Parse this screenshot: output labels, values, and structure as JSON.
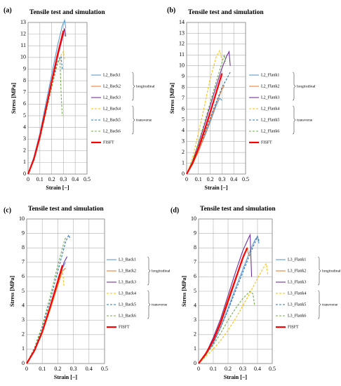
{
  "chart_data": [
    {
      "type": "line",
      "panel_label": "(a)",
      "title": "Tensile test and simulation",
      "xlabel": "Strain [−]",
      "ylabel": "Stress [MPa]",
      "xlim": [
        0,
        0.5
      ],
      "xticks": [
        0,
        0.1,
        0.2,
        0.3,
        0.4,
        0.5
      ],
      "ylim": [
        0,
        13
      ],
      "yticks": [
        0,
        1,
        2,
        3,
        4,
        5,
        6,
        7,
        8,
        9,
        10,
        11,
        12,
        13
      ],
      "grid": true,
      "legend_group_labels": [
        "longitudinal",
        "transverse"
      ],
      "series": [
        {
          "name": "L2_Back1",
          "color": "#5b9bd5",
          "dash": false,
          "x": [
            0,
            0.05,
            0.1,
            0.15,
            0.2,
            0.25,
            0.29,
            0.31,
            0.32
          ],
          "values": [
            0,
            1.5,
            3.5,
            6,
            8.5,
            11,
            12.7,
            13.2,
            12.5
          ]
        },
        {
          "name": "L2_Back2",
          "color": "#ed7d31",
          "dash": false,
          "x": [
            0,
            0.05,
            0.1,
            0.15,
            0.2,
            0.25,
            0.3,
            0.31
          ],
          "values": [
            0,
            1.4,
            3.3,
            5.6,
            8,
            10.4,
            12.2,
            11.8
          ]
        },
        {
          "name": "L2_Back3",
          "color": "#7030a0",
          "dash": false,
          "x": [
            0,
            0.05,
            0.1,
            0.15,
            0.2,
            0.25,
            0.3,
            0.31,
            0.32
          ],
          "values": [
            0,
            1.3,
            3.2,
            5.5,
            7.8,
            10,
            12,
            12.5,
            11.8
          ]
        },
        {
          "name": "L2_Back4",
          "color": "#ffc000",
          "dash": true,
          "x": [
            0,
            0.05,
            0.1,
            0.15,
            0.2,
            0.25,
            0.28,
            0.3,
            0.31
          ],
          "values": [
            0,
            1.3,
            3.2,
            5.4,
            7.6,
            9.4,
            10.2,
            10.5,
            9.8
          ]
        },
        {
          "name": "L2_Back5",
          "color": "#2e75b6",
          "dash": true,
          "x": [
            0,
            0.05,
            0.1,
            0.15,
            0.2,
            0.25,
            0.28,
            0.29
          ],
          "values": [
            0,
            1.3,
            3.2,
            5.5,
            7.8,
            9.6,
            10.1,
            9
          ]
        },
        {
          "name": "L2_Back6",
          "color": "#70ad47",
          "dash": true,
          "x": [
            0,
            0.05,
            0.1,
            0.15,
            0.2,
            0.25,
            0.27,
            0.28,
            0.29
          ],
          "values": [
            0,
            1.2,
            3,
            5.2,
            7.4,
            9.5,
            10,
            7,
            5
          ]
        },
        {
          "name": "FISFT",
          "color": "#ff0000",
          "dash": false,
          "x": [
            0,
            0.05,
            0.1,
            0.15,
            0.2,
            0.25,
            0.3
          ],
          "values": [
            0,
            1.3,
            3.2,
            5.5,
            7.9,
            10.2,
            12.3
          ]
        }
      ]
    },
    {
      "type": "line",
      "panel_label": "(b)",
      "title": "Tensile test and simulation",
      "xlabel": "Strain [−]",
      "ylabel": "Stress [MPa]",
      "xlim": [
        0,
        0.5
      ],
      "xticks": [
        0,
        0.1,
        0.2,
        0.3,
        0.4,
        0.5
      ],
      "ylim": [
        0,
        14
      ],
      "yticks": [
        0,
        1,
        2,
        3,
        4,
        5,
        6,
        7,
        8,
        9,
        10,
        11,
        12,
        13,
        14
      ],
      "grid": true,
      "legend_group_labels": [
        "longitudinal",
        "transverse"
      ],
      "series": [
        {
          "name": "L2_Flank1",
          "color": "#5b9bd5",
          "dash": false,
          "x": [
            0,
            0.05,
            0.1,
            0.15,
            0.2,
            0.25,
            0.28,
            0.3
          ],
          "values": [
            0,
            0.9,
            2.1,
            3.4,
            4.8,
            6.3,
            7,
            6.8
          ]
        },
        {
          "name": "L2_Flank2",
          "color": "#ed7d31",
          "dash": false,
          "x": [
            0,
            0.05,
            0.1,
            0.15,
            0.2,
            0.25,
            0.3,
            0.32
          ],
          "values": [
            0,
            0.9,
            2.1,
            3.5,
            5,
            6.5,
            7.8,
            8.2
          ]
        },
        {
          "name": "L2_Flank3",
          "color": "#7030a0",
          "dash": false,
          "x": [
            0,
            0.05,
            0.1,
            0.15,
            0.2,
            0.25,
            0.3,
            0.34,
            0.36,
            0.37
          ],
          "values": [
            0,
            1.2,
            2.8,
            4.5,
            6.3,
            8.1,
            9.8,
            10.9,
            11.3,
            10
          ]
        },
        {
          "name": "L2_Flank4",
          "color": "#ffc000",
          "dash": true,
          "x": [
            0,
            0.05,
            0.1,
            0.15,
            0.2,
            0.25,
            0.28,
            0.3
          ],
          "values": [
            0,
            1.5,
            3.8,
            6.2,
            8.8,
            10.8,
            11.4,
            10.5
          ]
        },
        {
          "name": "L2_Flank5",
          "color": "#2e75b6",
          "dash": true,
          "x": [
            0,
            0.05,
            0.1,
            0.15,
            0.2,
            0.25,
            0.3,
            0.35,
            0.37
          ],
          "values": [
            0,
            1,
            2.3,
            3.7,
            5.2,
            6.6,
            8,
            9,
            9.4
          ]
        },
        {
          "name": "L2_Flank6",
          "color": "#70ad47",
          "dash": true,
          "x": [
            0,
            0.05,
            0.1,
            0.15,
            0.2,
            0.25,
            0.3,
            0.32,
            0.33
          ],
          "values": [
            0,
            1.2,
            2.9,
            4.7,
            6.6,
            8.5,
            10.3,
            11,
            10.2
          ]
        },
        {
          "name": "FISFT",
          "color": "#ff0000",
          "dash": false,
          "x": [
            0,
            0.05,
            0.1,
            0.15,
            0.2,
            0.25,
            0.3
          ],
          "values": [
            0,
            1,
            2.4,
            4,
            5.7,
            7.5,
            9.3
          ]
        }
      ]
    },
    {
      "type": "line",
      "panel_label": "(c)",
      "title": "Tensile test and simulation",
      "xlabel": "Strain [−]",
      "ylabel": "Stress [MPa]",
      "xlim": [
        0,
        0.5
      ],
      "xticks": [
        0,
        0.1,
        0.2,
        0.3,
        0.4,
        0.5
      ],
      "ylim": [
        0,
        10
      ],
      "yticks": [
        0,
        1,
        2,
        3,
        4,
        5,
        6,
        7,
        8,
        9,
        10
      ],
      "grid": true,
      "legend_group_labels": [
        "longitudinal",
        "transverse"
      ],
      "series": [
        {
          "name": "L3_Back1",
          "color": "#5b9bd5",
          "dash": false,
          "x": [
            0,
            0.05,
            0.1,
            0.15,
            0.2,
            0.23,
            0.25
          ],
          "values": [
            0,
            0.9,
            2.2,
            3.8,
            5.5,
            6.6,
            7
          ]
        },
        {
          "name": "L3_Back2",
          "color": "#ed7d31",
          "dash": false,
          "x": [
            0,
            0.05,
            0.1,
            0.15,
            0.2,
            0.23,
            0.25
          ],
          "values": [
            0,
            0.9,
            2.1,
            3.7,
            5.4,
            6.4,
            6.6
          ]
        },
        {
          "name": "L3_Back3",
          "color": "#7030a0",
          "dash": false,
          "x": [
            0,
            0.05,
            0.1,
            0.15,
            0.2,
            0.24,
            0.26
          ],
          "values": [
            0,
            0.9,
            2.2,
            3.8,
            5.6,
            7,
            7.4
          ]
        },
        {
          "name": "L3_Back4",
          "color": "#ffc000",
          "dash": true,
          "x": [
            0,
            0.05,
            0.1,
            0.15,
            0.2,
            0.23,
            0.24
          ],
          "values": [
            0,
            0.9,
            2.1,
            3.8,
            5.6,
            6.4,
            5.3
          ]
        },
        {
          "name": "L3_Back5",
          "color": "#2e75b6",
          "dash": true,
          "x": [
            0,
            0.05,
            0.1,
            0.15,
            0.2,
            0.25,
            0.27,
            0.28
          ],
          "values": [
            0,
            1,
            2.5,
            4.3,
            6.4,
            8.4,
            8.9,
            8.6
          ]
        },
        {
          "name": "L3_Back6",
          "color": "#70ad47",
          "dash": true,
          "x": [
            0,
            0.05,
            0.1,
            0.15,
            0.2,
            0.24,
            0.25
          ],
          "values": [
            0,
            1.1,
            2.6,
            4.6,
            6.8,
            8.4,
            8.7
          ]
        },
        {
          "name": "FISFT",
          "color": "#ff0000",
          "dash": false,
          "x": [
            0,
            0.05,
            0.1,
            0.15,
            0.2,
            0.23
          ],
          "values": [
            0,
            0.9,
            2.2,
            3.9,
            5.7,
            6.8
          ]
        }
      ]
    },
    {
      "type": "line",
      "panel_label": "(d)",
      "title": "Tensile test and simulation",
      "xlabel": "Strain [−]",
      "ylabel": "Stress [MPa]",
      "xlim": [
        0,
        0.5
      ],
      "xticks": [
        0,
        0.1,
        0.2,
        0.3,
        0.4,
        0.5
      ],
      "ylim": [
        0,
        10
      ],
      "yticks": [
        0,
        1,
        2,
        3,
        4,
        5,
        6,
        7,
        8,
        9,
        10
      ],
      "grid": true,
      "legend_group_labels": [
        "longitudinal",
        "transverse"
      ],
      "series": [
        {
          "name": "L3_Flank1",
          "color": "#5b9bd5",
          "dash": false,
          "x": [
            0,
            0.05,
            0.1,
            0.15,
            0.2,
            0.25,
            0.3,
            0.35,
            0.38,
            0.4,
            0.41
          ],
          "values": [
            0,
            0.6,
            1.4,
            2.5,
            3.8,
            5.2,
            6.5,
            7.8,
            8.5,
            8.8,
            8.3
          ]
        },
        {
          "name": "L3_Flank2",
          "color": "#ed7d31",
          "dash": false,
          "x": [
            0,
            0.05,
            0.1,
            0.15,
            0.2,
            0.25,
            0.3,
            0.33,
            0.34
          ],
          "values": [
            0,
            0.7,
            1.7,
            3,
            4.5,
            5.9,
            7.3,
            8,
            7.5
          ]
        },
        {
          "name": "L3_Flank3",
          "color": "#7030a0",
          "dash": false,
          "x": [
            0,
            0.05,
            0.1,
            0.15,
            0.2,
            0.25,
            0.3,
            0.34,
            0.35,
            0.36
          ],
          "values": [
            0,
            0.7,
            1.8,
            3.1,
            4.7,
            6.3,
            7.8,
            8.7,
            8.9,
            6
          ]
        },
        {
          "name": "L3_Flank4",
          "color": "#ffc000",
          "dash": true,
          "x": [
            0,
            0.05,
            0.1,
            0.15,
            0.2,
            0.25,
            0.3,
            0.35,
            0.4,
            0.45,
            0.46,
            0.47
          ],
          "values": [
            0,
            0.5,
            1,
            1.6,
            2.3,
            3.1,
            4,
            4.9,
            5.9,
            6.8,
            6.9,
            6.1
          ]
        },
        {
          "name": "L3_Flank5",
          "color": "#2e75b6",
          "dash": true,
          "x": [
            0,
            0.05,
            0.1,
            0.15,
            0.2,
            0.25,
            0.3,
            0.35,
            0.38,
            0.4,
            0.41
          ],
          "values": [
            0,
            0.6,
            1.4,
            2.5,
            3.7,
            5,
            6.3,
            7.6,
            8.3,
            8.8,
            8.5
          ]
        },
        {
          "name": "L3_Flank6",
          "color": "#70ad47",
          "dash": true,
          "x": [
            0,
            0.05,
            0.1,
            0.15,
            0.2,
            0.25,
            0.3,
            0.35,
            0.37,
            0.38
          ],
          "values": [
            0,
            0.6,
            1.3,
            2.1,
            3,
            3.8,
            4.5,
            5,
            4.8,
            4
          ]
        },
        {
          "name": "FISFT",
          "color": "#ff0000",
          "dash": false,
          "x": [
            0,
            0.05,
            0.1,
            0.15,
            0.2,
            0.25,
            0.3,
            0.33
          ],
          "values": [
            0,
            0.7,
            1.6,
            2.8,
            4.3,
            5.8,
            7.3,
            8
          ]
        }
      ]
    }
  ]
}
